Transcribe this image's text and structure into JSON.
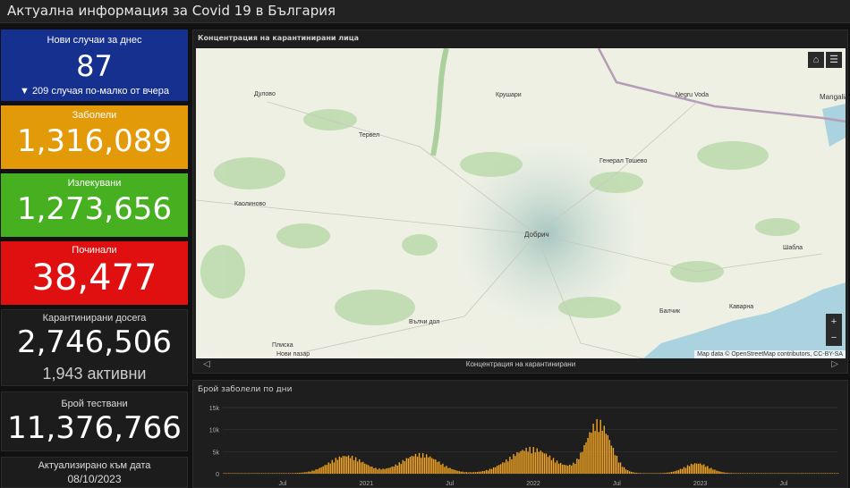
{
  "header": {
    "title": "Актуална информация за Covid 19 в България"
  },
  "cards": {
    "new": {
      "label": "Нови случаи за днес",
      "value": "87",
      "sub": "▼ 209 случая по-малко от вчера"
    },
    "sick": {
      "label": "Заболели",
      "value": "1,316,089"
    },
    "recovered": {
      "label": "Излекувани",
      "value": "1,273,656"
    },
    "dead": {
      "label": "Починали",
      "value": "38,477"
    },
    "quarantined": {
      "label": "Карантинирани досега",
      "value": "2,746,506",
      "sub": "1,943 активни"
    },
    "tests": {
      "label": "Брой тествани",
      "value": "11,376,766"
    },
    "updated": {
      "label": "Актуализирано към дата",
      "value": "08/10/2023"
    }
  },
  "map": {
    "title": "Концентрация на карантинирани лица",
    "places": [
      "Крушари",
      "Negru Voda",
      "Mangalia",
      "Дуловo",
      "Тервел",
      "Генерал Тошево",
      "Каолиново",
      "Добрич",
      "Шабла",
      "Вълчи дол",
      "Балчик",
      "Каварна",
      "Плиска",
      "Нови пазар"
    ],
    "attribution": "Map data © OpenStreetMap contributors, CC-BY-SA",
    "home_icon": "⌂",
    "list_icon": "☰",
    "zoom_in": "+",
    "zoom_out": "−",
    "nav_title": "Концентрация на карантинирани",
    "prev_icon": "◁",
    "next_icon": "▷"
  },
  "chart_data": {
    "type": "bar",
    "title": "Брой заболели по дни",
    "color": "#f5a623",
    "y_ticks": [
      "15k",
      "10k",
      "5k",
      "0"
    ],
    "ylim": [
      0,
      15000
    ],
    "x_ticks": [
      "Jul",
      "2021",
      "Jul",
      "2022",
      "Jul",
      "2023",
      "Jul"
    ],
    "peaks": [
      {
        "period": "2020-11",
        "value": 4200
      },
      {
        "period": "2021-03",
        "value": 4600
      },
      {
        "period": "2021-10",
        "value": 6000
      },
      {
        "period": "2022-01",
        "value": 12300
      },
      {
        "period": "2022-07",
        "value": 2400
      }
    ]
  }
}
